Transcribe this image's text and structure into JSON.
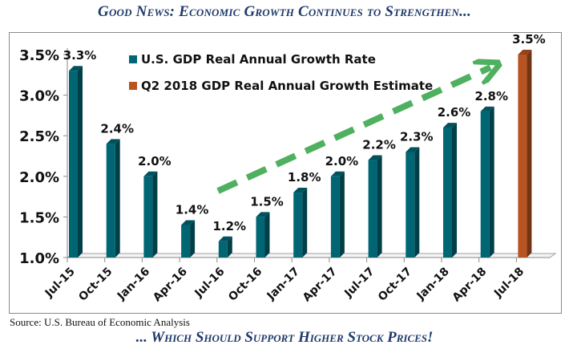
{
  "header": {
    "title": "Good News: Economic Growth Continues to Strengthen..."
  },
  "footer": {
    "source": "Source: U.S. Bureau of Economic Analysis",
    "tagline": "... Which  Should Support Higher Stock Prices!"
  },
  "chart_data": {
    "type": "bar",
    "title": "Good News: Economic Growth Continues to Strengthen...",
    "xlabel": "",
    "ylabel": "",
    "ylim": [
      1.0,
      3.5
    ],
    "yticks": [
      1.0,
      1.5,
      2.0,
      2.5,
      3.0,
      3.5
    ],
    "ytick_labels": [
      "1.0%",
      "1.5%",
      "2.0%",
      "2.5%",
      "3.0%",
      "3.5%"
    ],
    "categories": [
      "Jul-15",
      "Oct-15",
      "Jan-16",
      "Apr-16",
      "Jul-16",
      "Oct-16",
      "Jan-17",
      "Apr-17",
      "Jul-17",
      "Oct-17",
      "Jan-18",
      "Apr-18",
      "Jul-18"
    ],
    "series": [
      {
        "name": "U.S. GDP Real Annual Growth Rate",
        "color": "#006674",
        "values": [
          3.3,
          2.4,
          2.0,
          1.4,
          1.2,
          1.5,
          1.8,
          2.0,
          2.2,
          2.3,
          2.6,
          2.8,
          null
        ],
        "labels": [
          "3.3%",
          "2.4%",
          "2.0%",
          "1.4%",
          "1.2%",
          "1.5%",
          "1.8%",
          "2.0%",
          "2.2%",
          "2.3%",
          "2.6%",
          "2.8%",
          null
        ]
      },
      {
        "name": "Q2 2018 GDP Real Annual Growth Estimate",
        "color": "#b85420",
        "values": [
          null,
          null,
          null,
          null,
          null,
          null,
          null,
          null,
          null,
          null,
          null,
          null,
          3.5
        ],
        "labels": [
          null,
          null,
          null,
          null,
          null,
          null,
          null,
          null,
          null,
          null,
          null,
          null,
          "3.5%"
        ]
      }
    ],
    "legend": "top-left",
    "grid": false,
    "annotations": [
      {
        "type": "trend-arrow",
        "color": "#4fb060",
        "style": "dashed",
        "direction": "up-right",
        "from_category": "Jul-16",
        "to_category": "Apr-18"
      }
    ]
  }
}
